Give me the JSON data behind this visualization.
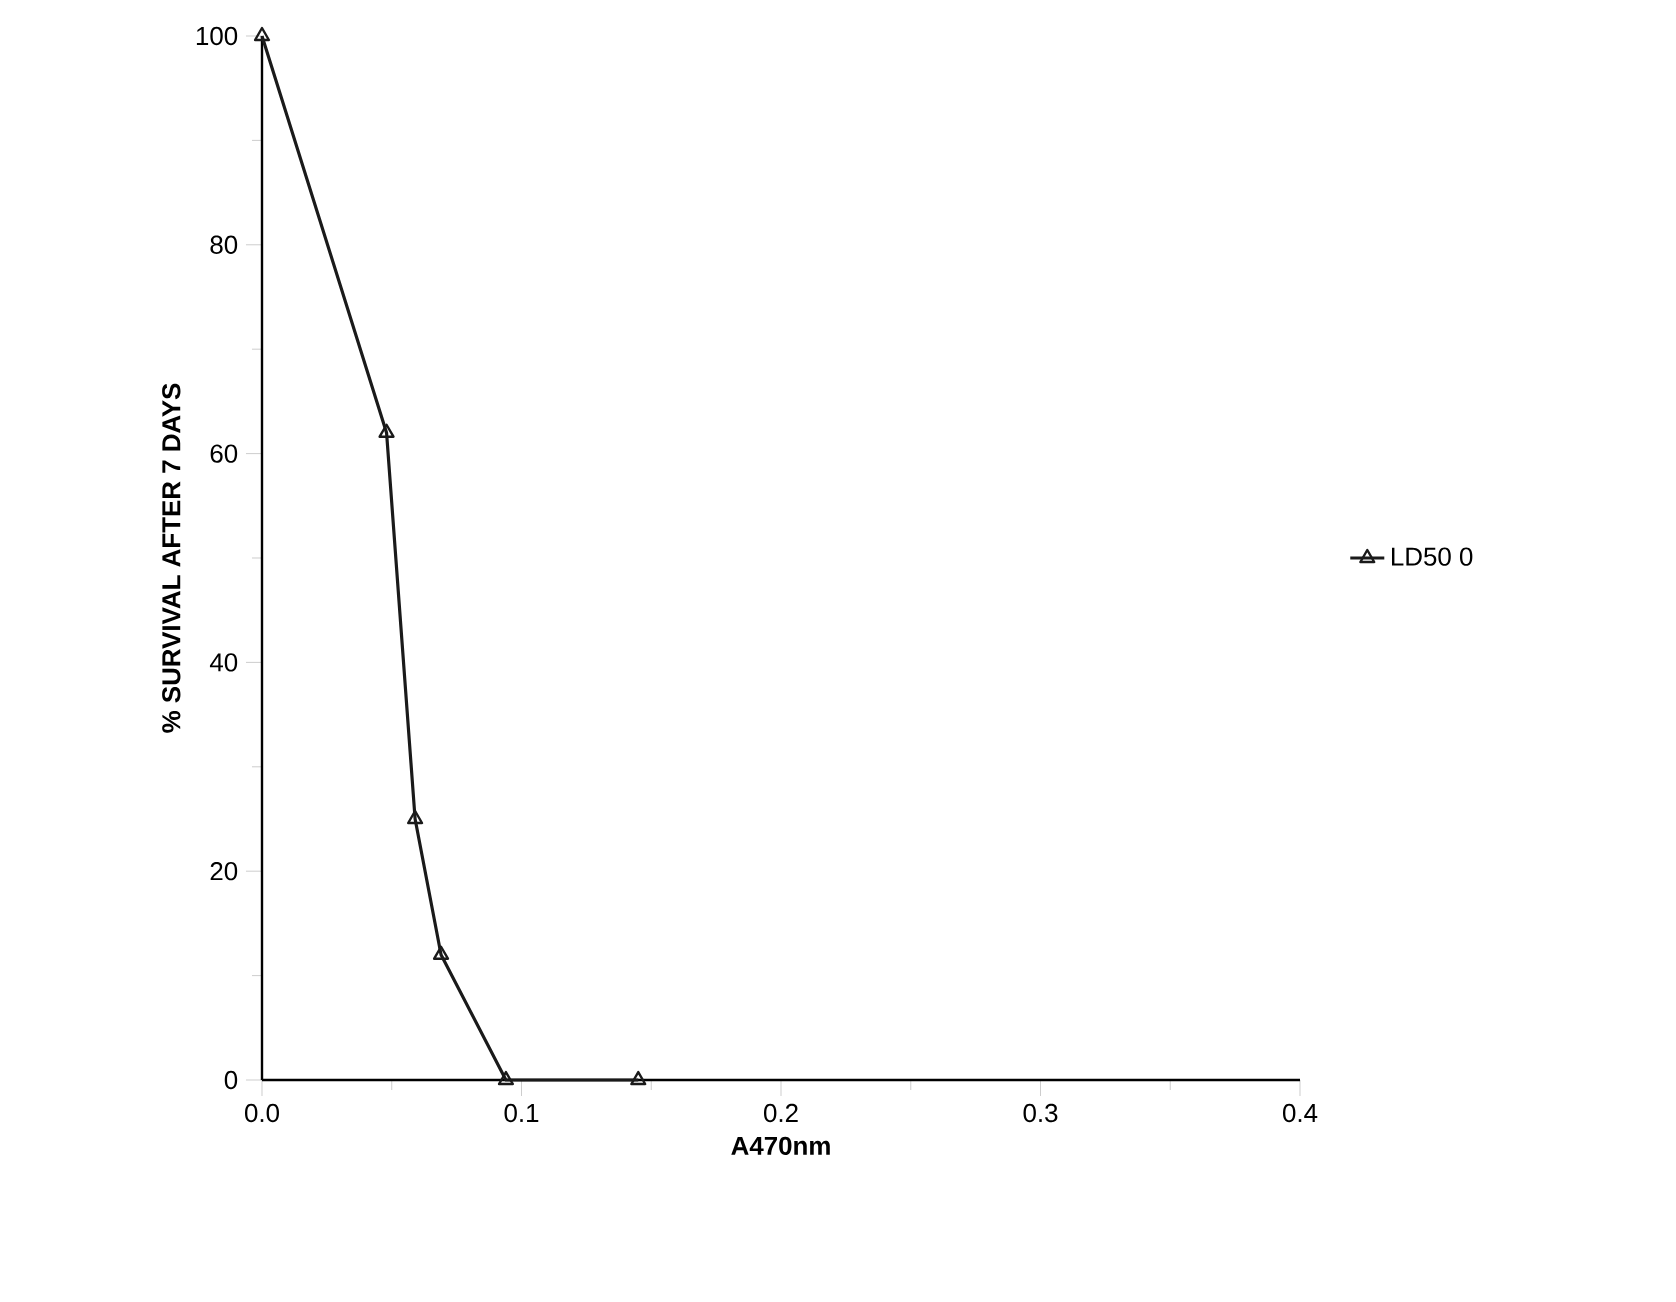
{
  "chart_data": {
    "type": "line",
    "xlabel": "A470nm",
    "ylabel": "% SURVIVAL AFTER 7 DAYS",
    "x": [
      0.0,
      0.048,
      0.059,
      0.069,
      0.094,
      0.145
    ],
    "series": [
      {
        "name": "LD50 0",
        "color": "#1a1a1a",
        "values": [
          100,
          62,
          25,
          12,
          0,
          0
        ]
      }
    ],
    "xlim": [
      0,
      0.4
    ],
    "ylim": [
      0,
      100
    ],
    "xticks": [
      {
        "value": 0,
        "label": "0.0"
      },
      0.1,
      0.2,
      0.3,
      0.4
    ],
    "yticks": [
      0,
      20,
      40,
      60,
      80,
      100
    ],
    "marker": "triangle",
    "line_style": "solid",
    "legend": "right",
    "grid": false
  }
}
